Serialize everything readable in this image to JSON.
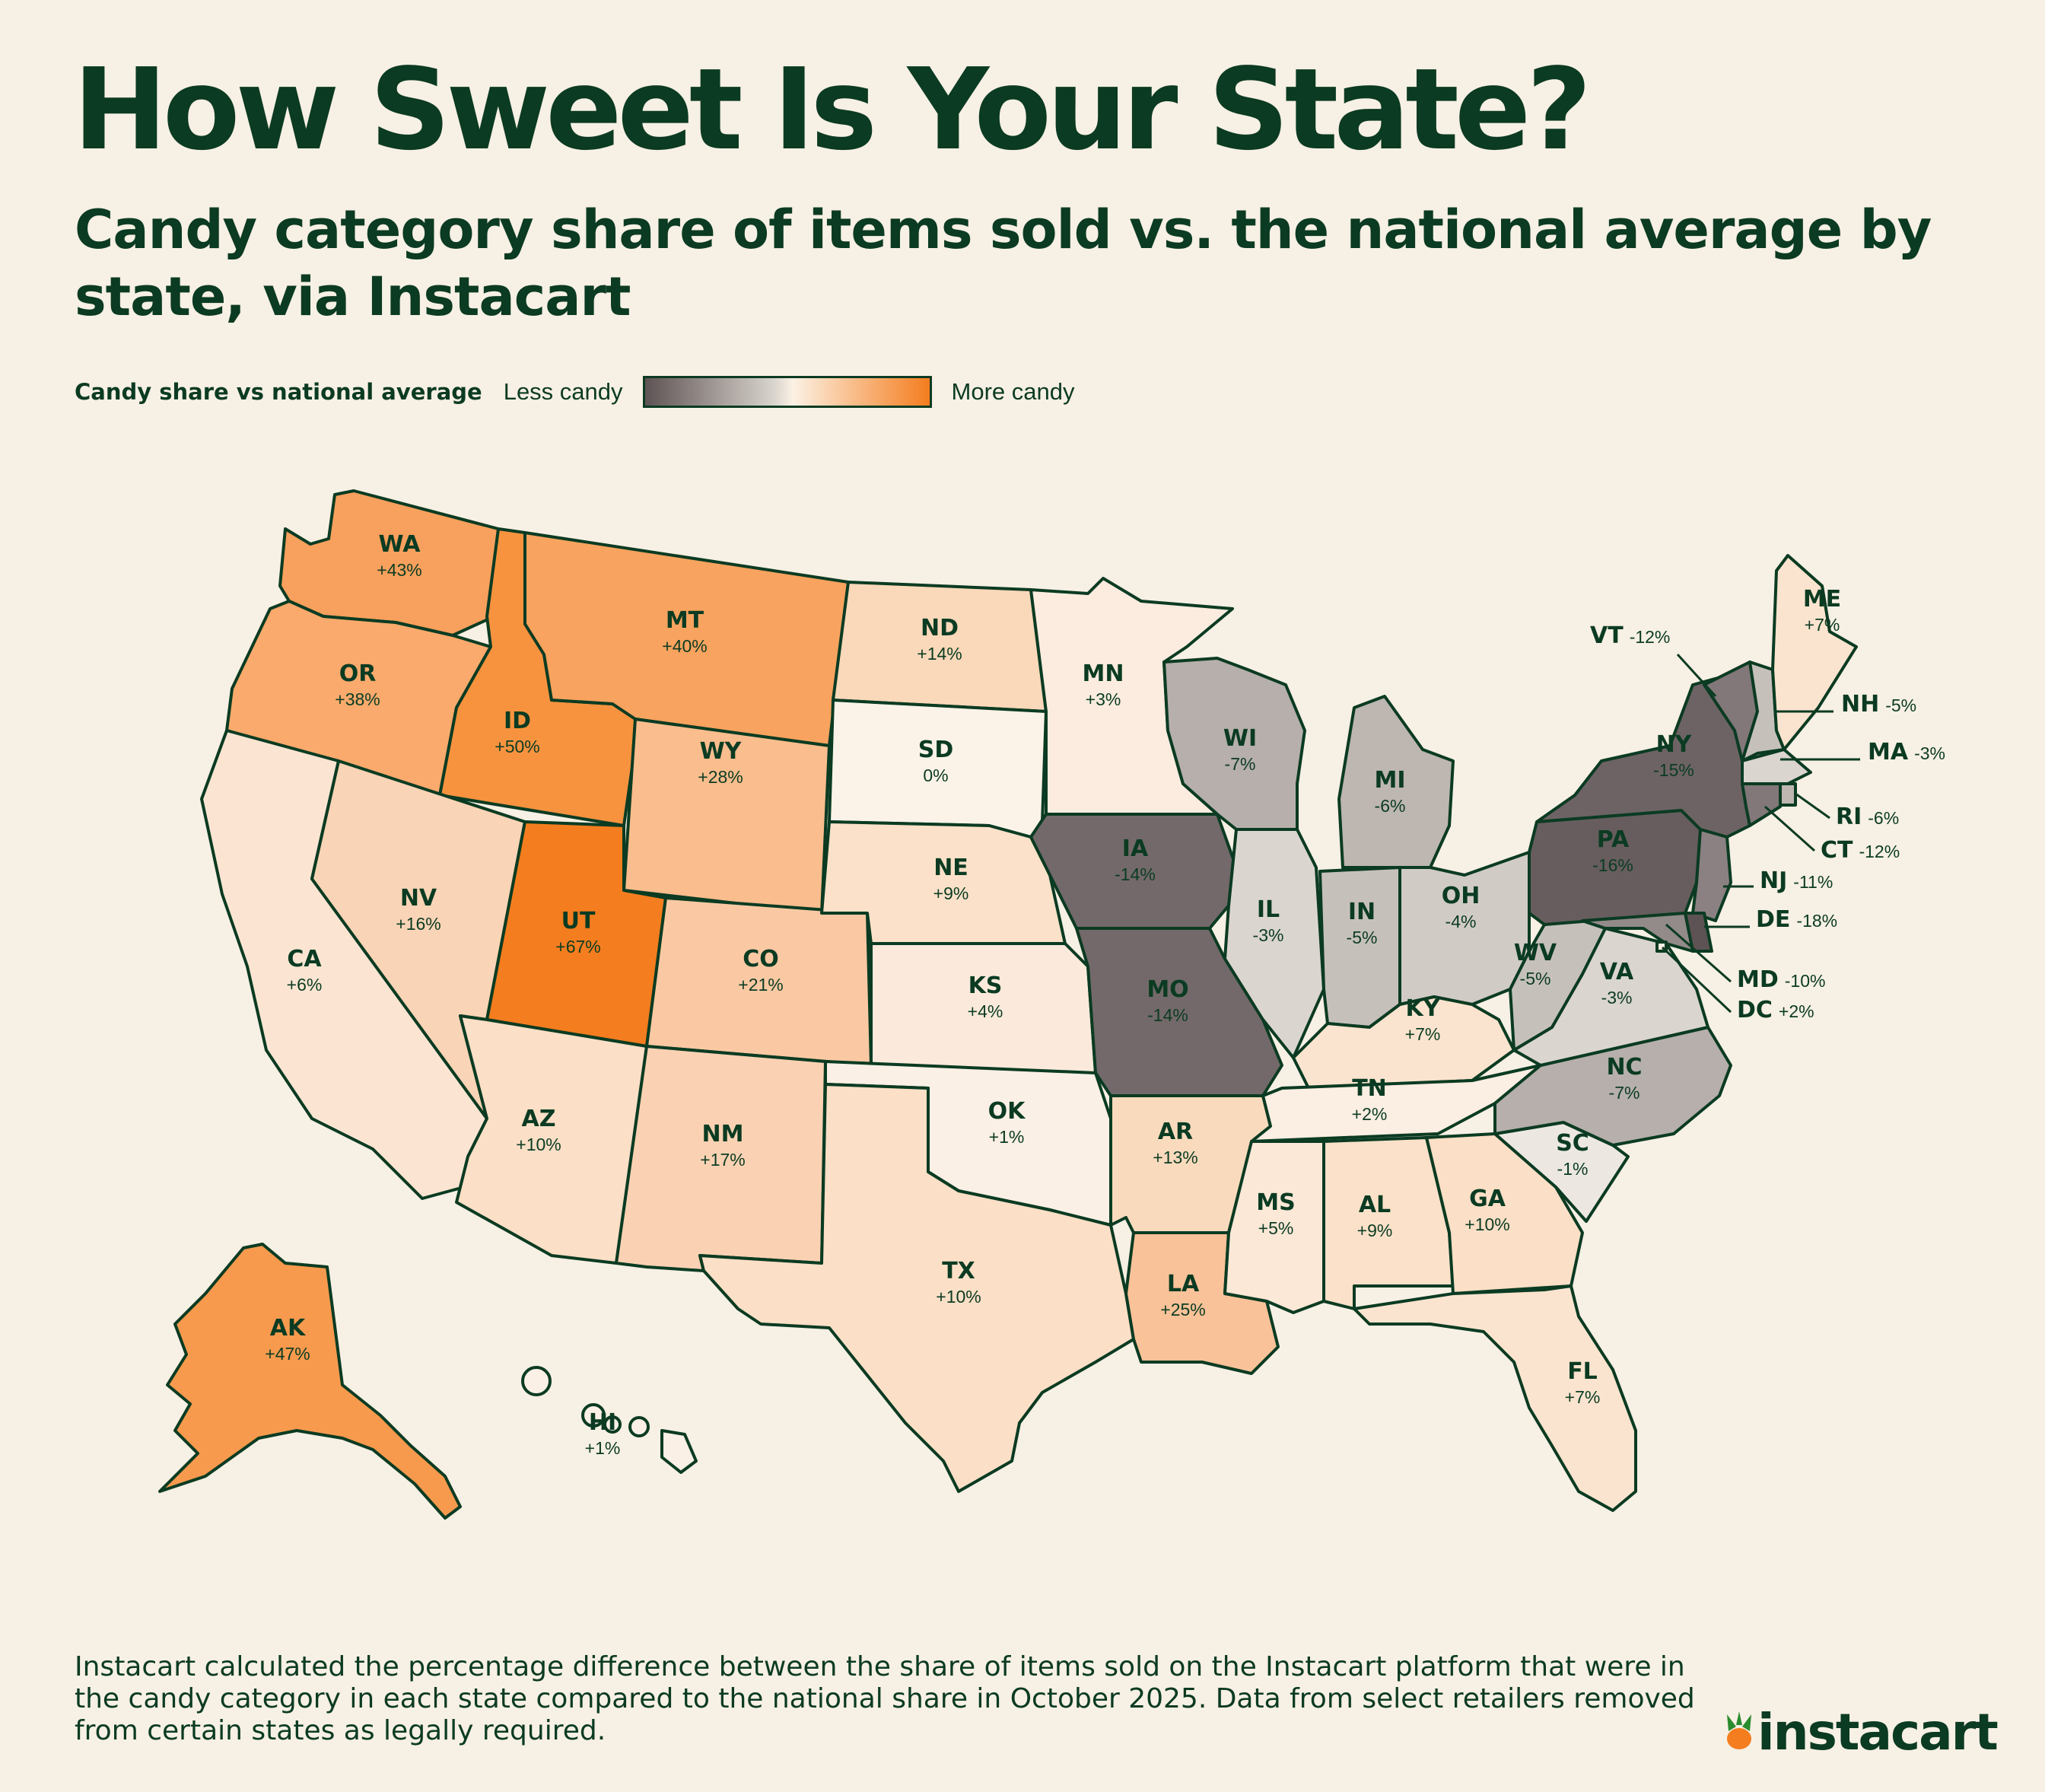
{
  "title": "How Sweet Is Your State?",
  "subtitle": "Candy category share of items sold vs. the national average by state, via Instacart",
  "legend": {
    "title": "Candy share vs national average",
    "low_label": "Less candy",
    "high_label": "More candy",
    "colors": [
      "#5e5354",
      "#d8d3cc",
      "#fbf1e4",
      "#f9c08f",
      "#f47d1f"
    ]
  },
  "footnote": "Instacart calculated the percentage difference between the share of items sold on the Instacart platform that were in the candy category in each state compared to the national share in October 2025. Data from select retailers removed from certain states as legally required.",
  "brand": {
    "name": "instacart",
    "logo_icon": "carrot-icon"
  },
  "map": {
    "type": "choropleth",
    "states": [
      {
        "code": "WA",
        "value": "+43%",
        "color": "#f8a05d"
      },
      {
        "code": "OR",
        "value": "+38%",
        "color": "#f9aa6c"
      },
      {
        "code": "CA",
        "value": "+6%",
        "color": "#fbe5d2"
      },
      {
        "code": "ID",
        "value": "+50%",
        "color": "#f7933f"
      },
      {
        "code": "NV",
        "value": "+16%",
        "color": "#fad4b6"
      },
      {
        "code": "MT",
        "value": "+40%",
        "color": "#f8a35f"
      },
      {
        "code": "WY",
        "value": "+28%",
        "color": "#fabd8d"
      },
      {
        "code": "UT",
        "value": "+67%",
        "color": "#f47d1f"
      },
      {
        "code": "AZ",
        "value": "+10%",
        "color": "#fbdfc6"
      },
      {
        "code": "CO",
        "value": "+21%",
        "color": "#fac9a3"
      },
      {
        "code": "NM",
        "value": "+17%",
        "color": "#fad2b3"
      },
      {
        "code": "ND",
        "value": "+14%",
        "color": "#fad8ba"
      },
      {
        "code": "SD",
        "value": "0%",
        "color": "#fbf3e8"
      },
      {
        "code": "NE",
        "value": "+9%",
        "color": "#fbe1c9"
      },
      {
        "code": "KS",
        "value": "+4%",
        "color": "#fbeadb"
      },
      {
        "code": "OK",
        "value": "+1%",
        "color": "#fbf0e5"
      },
      {
        "code": "TX",
        "value": "+10%",
        "color": "#fbdfc6"
      },
      {
        "code": "MN",
        "value": "+3%",
        "color": "#fbecdf"
      },
      {
        "code": "IA",
        "value": "-14%",
        "color": "#73696a"
      },
      {
        "code": "MO",
        "value": "-14%",
        "color": "#73696a"
      },
      {
        "code": "AR",
        "value": "+13%",
        "color": "#fadabd"
      },
      {
        "code": "LA",
        "value": "+25%",
        "color": "#fac299"
      },
      {
        "code": "WI",
        "value": "-7%",
        "color": "#b6afab"
      },
      {
        "code": "IL",
        "value": "-3%",
        "color": "#dbd5cf"
      },
      {
        "code": "MI",
        "value": "-6%",
        "color": "#bdb6b1"
      },
      {
        "code": "IN",
        "value": "-5%",
        "color": "#c6c0bb"
      },
      {
        "code": "OH",
        "value": "-4%",
        "color": "#d1cbc5"
      },
      {
        "code": "KY",
        "value": "+7%",
        "color": "#fbe4cf"
      },
      {
        "code": "TN",
        "value": "+2%",
        "color": "#fbeee2"
      },
      {
        "code": "MS",
        "value": "+5%",
        "color": "#fbe8d7"
      },
      {
        "code": "AL",
        "value": "+9%",
        "color": "#fbe1c9"
      },
      {
        "code": "GA",
        "value": "+10%",
        "color": "#fbdfc6"
      },
      {
        "code": "FL",
        "value": "+7%",
        "color": "#fbe4cf"
      },
      {
        "code": "SC",
        "value": "-1%",
        "color": "#ece8e1"
      },
      {
        "code": "NC",
        "value": "-7%",
        "color": "#b6afab"
      },
      {
        "code": "VA",
        "value": "-3%",
        "color": "#dbd5cf"
      },
      {
        "code": "WV",
        "value": "-5%",
        "color": "#c6c0bb"
      },
      {
        "code": "PA",
        "value": "-16%",
        "color": "#675d5e"
      },
      {
        "code": "NY",
        "value": "-15%",
        "color": "#6d6364"
      },
      {
        "code": "VT",
        "value": "-12%",
        "color": "#827879"
      },
      {
        "code": "NH",
        "value": "-5%",
        "color": "#c6c0bb"
      },
      {
        "code": "ME",
        "value": "+7%",
        "color": "#fbe4cf"
      },
      {
        "code": "MA",
        "value": "-3%",
        "color": "#dbd5cf"
      },
      {
        "code": "RI",
        "value": "-6%",
        "color": "#bdb6b1"
      },
      {
        "code": "CT",
        "value": "-12%",
        "color": "#827879"
      },
      {
        "code": "NJ",
        "value": "-11%",
        "color": "#8b8182"
      },
      {
        "code": "DE",
        "value": "-18%",
        "color": "#5e5354"
      },
      {
        "code": "MD",
        "value": "-10%",
        "color": "#938a8a"
      },
      {
        "code": "DC",
        "value": "+2%",
        "color": "#fbeee2"
      },
      {
        "code": "AK",
        "value": "+47%",
        "color": "#f79a4e"
      },
      {
        "code": "HI",
        "value": "+1%",
        "color": "#fbf0e5"
      }
    ]
  }
}
